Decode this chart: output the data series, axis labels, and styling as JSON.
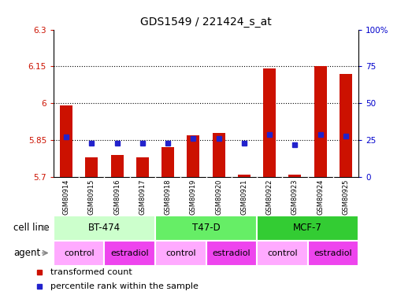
{
  "title": "GDS1549 / 221424_s_at",
  "samples": [
    "GSM80914",
    "GSM80915",
    "GSM80916",
    "GSM80917",
    "GSM80918",
    "GSM80919",
    "GSM80920",
    "GSM80921",
    "GSM80922",
    "GSM80923",
    "GSM80924",
    "GSM80925"
  ],
  "red_values": [
    5.99,
    5.78,
    5.79,
    5.78,
    5.82,
    5.87,
    5.88,
    5.71,
    6.14,
    5.71,
    6.15,
    6.12
  ],
  "blue_values": [
    27,
    23,
    23,
    23,
    23,
    26,
    26,
    23,
    29,
    22,
    29,
    28
  ],
  "ylim_left": [
    5.7,
    6.3
  ],
  "ylim_right": [
    0,
    100
  ],
  "yticks_left": [
    5.7,
    5.85,
    6.0,
    6.15,
    6.3
  ],
  "yticks_right": [
    0,
    25,
    50,
    75,
    100
  ],
  "ytick_labels_left": [
    "5.7",
    "5.85",
    "6",
    "6.15",
    "6.3"
  ],
  "ytick_labels_right": [
    "0",
    "25",
    "50",
    "75",
    "100%"
  ],
  "hlines": [
    5.85,
    6.0,
    6.15
  ],
  "cell_line_groups": [
    {
      "label": "BT-474",
      "start": 0,
      "end": 3,
      "color": "#ccffcc"
    },
    {
      "label": "T47-D",
      "start": 4,
      "end": 7,
      "color": "#66ee66"
    },
    {
      "label": "MCF-7",
      "start": 8,
      "end": 11,
      "color": "#33cc33"
    }
  ],
  "agent_groups": [
    {
      "label": "control",
      "start": 0,
      "end": 1,
      "color": "#ffaaff"
    },
    {
      "label": "estradiol",
      "start": 2,
      "end": 3,
      "color": "#ee44ee"
    },
    {
      "label": "control",
      "start": 4,
      "end": 5,
      "color": "#ffaaff"
    },
    {
      "label": "estradiol",
      "start": 6,
      "end": 7,
      "color": "#ee44ee"
    },
    {
      "label": "control",
      "start": 8,
      "end": 9,
      "color": "#ffaaff"
    },
    {
      "label": "estradiol",
      "start": 10,
      "end": 11,
      "color": "#ee44ee"
    }
  ],
  "bar_color": "#cc1100",
  "dot_color": "#2222cc",
  "bar_width": 0.5,
  "tick_fontsize": 7.5,
  "title_fontsize": 10,
  "sample_bg_color": "#cccccc",
  "sample_text_color": "#000000"
}
